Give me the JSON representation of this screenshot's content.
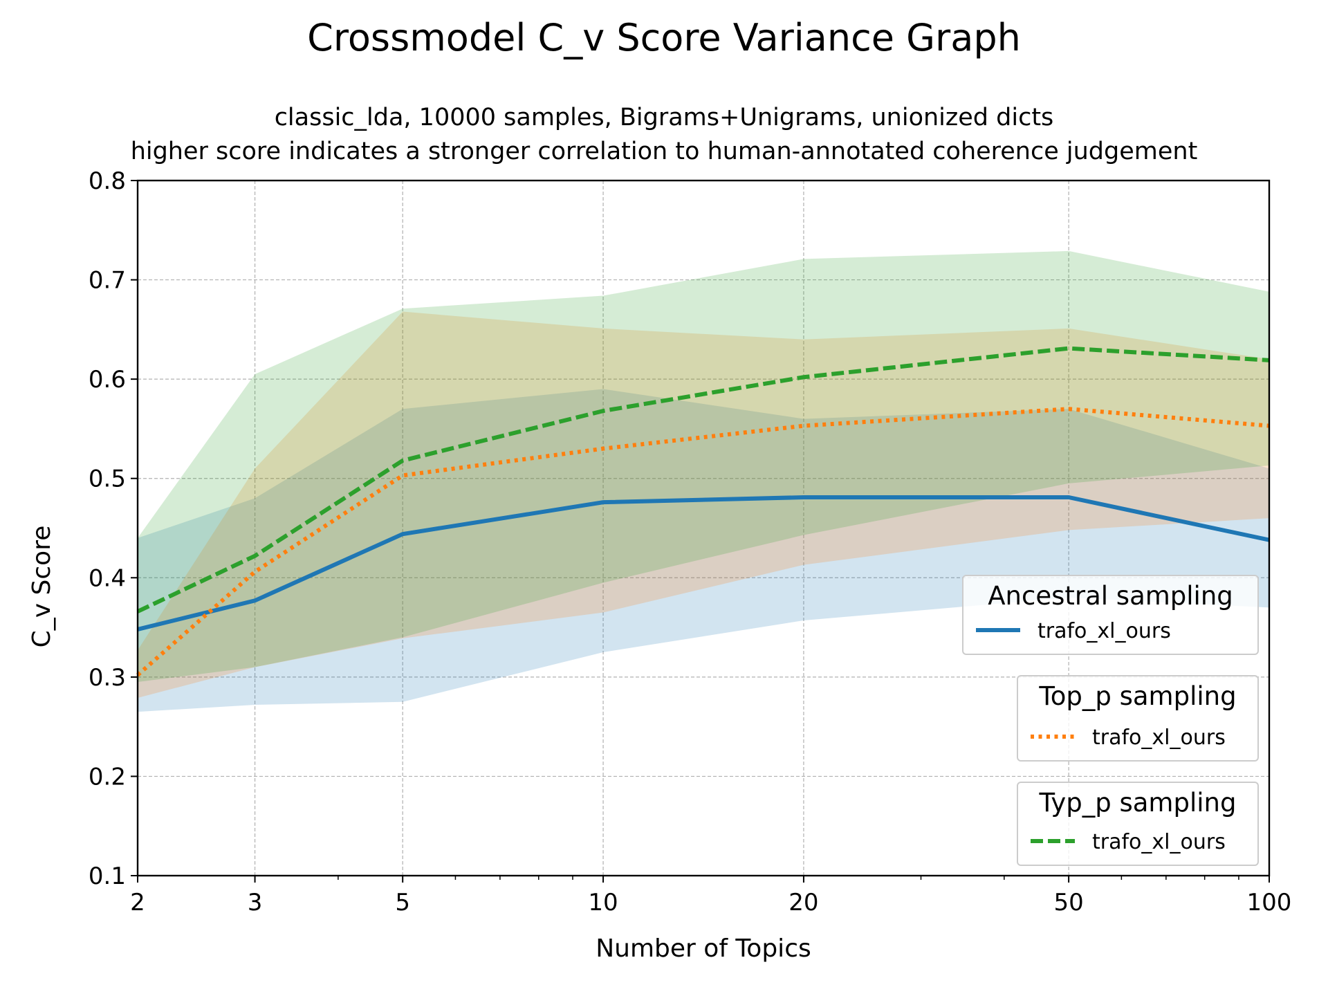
{
  "chart_data": {
    "type": "line",
    "title": "Crossmodel C_v Score Variance Graph",
    "subtitle": [
      "classic_lda, 10000 samples, Bigrams+Unigrams, unionized dicts",
      "higher score indicates a stronger correlation to human-annotated coherence judgement"
    ],
    "xlabel": "Number of Topics",
    "ylabel": "C_v Score",
    "xscale": "log",
    "x": [
      2,
      3,
      5,
      10,
      20,
      50,
      100
    ],
    "xticks": [
      "2",
      "3",
      "5",
      "10",
      "20",
      "50",
      "100"
    ],
    "xlim": [
      2,
      100
    ],
    "ylim": [
      0.1,
      0.8
    ],
    "yticks": [
      "0.1",
      "0.2",
      "0.3",
      "0.4",
      "0.5",
      "0.6",
      "0.7",
      "0.8"
    ],
    "grid": true,
    "series": [
      {
        "legend_title": "Ancestral sampling",
        "name": "trafo_xl_ours",
        "color": "#1f77b4",
        "linestyle": "solid",
        "values": [
          0.348,
          0.377,
          0.444,
          0.476,
          0.481,
          0.481,
          0.438
        ],
        "band_upper": [
          0.44,
          0.48,
          0.57,
          0.59,
          0.56,
          0.57,
          0.51
        ],
        "band_lower": [
          0.265,
          0.272,
          0.275,
          0.325,
          0.357,
          0.38,
          0.37
        ]
      },
      {
        "legend_title": "Top_p sampling",
        "name": "trafo_xl_ours",
        "color": "#ff7f0e",
        "linestyle": "dotted",
        "values": [
          0.302,
          0.406,
          0.503,
          0.53,
          0.553,
          0.57,
          0.553
        ],
        "band_upper": [
          0.327,
          0.51,
          0.668,
          0.651,
          0.64,
          0.651,
          0.62
        ],
        "band_lower": [
          0.279,
          0.31,
          0.339,
          0.365,
          0.413,
          0.448,
          0.46
        ]
      },
      {
        "legend_title": "Typ_p sampling",
        "name": "trafo_xl_ours",
        "color": "#2ca02c",
        "linestyle": "dashed",
        "values": [
          0.366,
          0.422,
          0.518,
          0.568,
          0.602,
          0.631,
          0.619
        ],
        "band_upper": [
          0.44,
          0.605,
          0.671,
          0.684,
          0.721,
          0.729,
          0.688
        ],
        "band_lower": [
          0.295,
          0.31,
          0.34,
          0.395,
          0.443,
          0.495,
          0.513
        ]
      }
    ],
    "legend_location": "bottom-right, stacked boxes"
  }
}
